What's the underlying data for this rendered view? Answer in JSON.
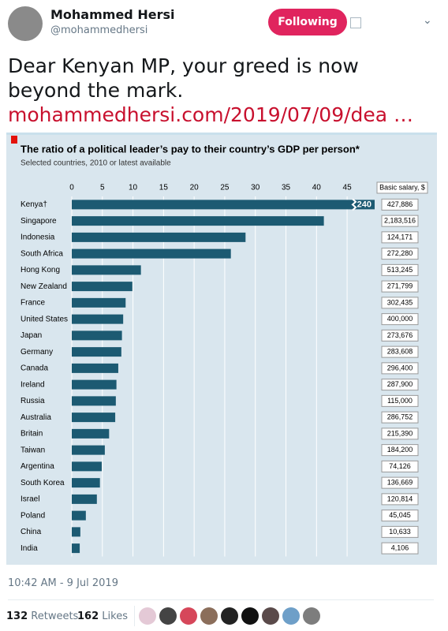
{
  "tweet": {
    "name": "Mohammed Hersi",
    "handle": "@mohammedhersi",
    "follow_button": "Following",
    "text": "Dear Kenyan MP, your greed is now beyond the mark.",
    "link": "mohammedhersi.com/2019/07/09/dea …",
    "timestamp": "10:42 AM - 9 Jul 2019",
    "retweets": "132",
    "retweets_label": "Retweets",
    "likes": "162",
    "likes_label": "Likes"
  },
  "chart_data": {
    "type": "bar",
    "orientation": "horizontal",
    "title": "The ratio of a political leader’s pay to their country’s GDP per person*",
    "subtitle": "Selected countries, 2010 or latest available",
    "categories": [
      "Kenya†",
      "Singapore",
      "Indonesia",
      "South Africa",
      "Hong Kong",
      "New Zealand",
      "France",
      "United States",
      "Japan",
      "Germany",
      "Canada",
      "Ireland",
      "Russia",
      "Australia",
      "Britain",
      "Taiwan",
      "Argentina",
      "South Korea",
      "Israel",
      "Poland",
      "China",
      "India"
    ],
    "values": [
      240,
      41.2,
      28.4,
      26,
      11.3,
      9.9,
      8.8,
      8.4,
      8.2,
      8.1,
      7.6,
      7.3,
      7.2,
      7.1,
      6.1,
      5.4,
      4.9,
      4.6,
      4.1,
      2.3,
      1.4,
      1.3
    ],
    "value_labels": [
      "240",
      null,
      null,
      null,
      null,
      null,
      null,
      null,
      null,
      null,
      null,
      null,
      null,
      null,
      null,
      null,
      null,
      null,
      null,
      null,
      null,
      null
    ],
    "color": "#1c5a72",
    "xlim": [
      0,
      49.5
    ],
    "xticks": [
      0,
      5,
      10,
      15,
      20,
      25,
      30,
      35,
      40,
      45
    ],
    "grid": true,
    "salary_header": "Basic salary, $",
    "salaries": [
      "427,886",
      "2,183,516",
      "124,171",
      "272,280",
      "513,245",
      "271,799",
      "302,435",
      "400,000",
      "273,676",
      "283,608",
      "296,400",
      "287,900",
      "115,000",
      "286,752",
      "215,390",
      "184,200",
      "74,126",
      "136,669",
      "120,814",
      "45,045",
      "10,633",
      "4,106"
    ]
  }
}
